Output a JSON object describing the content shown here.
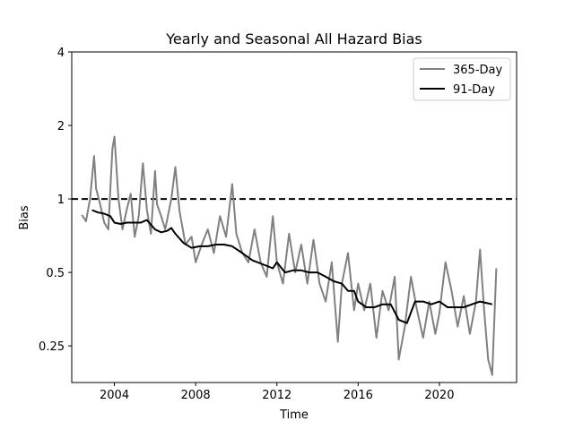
{
  "chart_data": {
    "type": "line",
    "title": "Yearly and Seasonal All Hazard Bias",
    "xlabel": "Time",
    "ylabel": "Bias",
    "y_scale": "log2",
    "xlim": [
      2001.9,
      2023.8
    ],
    "ylim": [
      0.177,
      4
    ],
    "x_ticks": [
      2004,
      2008,
      2012,
      2016,
      2020
    ],
    "x_tick_labels": [
      "2004",
      "2008",
      "2012",
      "2016",
      "2020"
    ],
    "y_ticks": [
      0.25,
      0.5,
      1,
      2,
      4
    ],
    "y_tick_labels": [
      "0.25",
      "0.5",
      "1",
      "2",
      "4"
    ],
    "grid": false,
    "legend": {
      "position": "top-right",
      "entries": [
        "365-Day",
        "91-Day"
      ]
    },
    "reference_line": {
      "y": 1,
      "style": "dashed",
      "color": "#000000"
    },
    "series": [
      {
        "name": "365-Day",
        "color": "#808080",
        "x": [
          2002.4,
          2002.6,
          2002.8,
          2003.0,
          2003.1,
          2003.3,
          2003.5,
          2003.7,
          2003.9,
          2004.0,
          2004.2,
          2004.4,
          2004.6,
          2004.8,
          2005.0,
          2005.2,
          2005.4,
          2005.6,
          2005.8,
          2006.0,
          2006.1,
          2006.3,
          2006.5,
          2006.8,
          2007.0,
          2007.2,
          2007.5,
          2007.8,
          2008.0,
          2008.3,
          2008.6,
          2008.9,
          2009.2,
          2009.5,
          2009.8,
          2010.0,
          2010.3,
          2010.6,
          2010.9,
          2011.2,
          2011.5,
          2011.8,
          2012.0,
          2012.3,
          2012.6,
          2012.9,
          2013.2,
          2013.5,
          2013.8,
          2014.1,
          2014.4,
          2014.7,
          2015.0,
          2015.2,
          2015.5,
          2015.8,
          2016.0,
          2016.3,
          2016.6,
          2016.9,
          2017.2,
          2017.5,
          2017.8,
          2018.0,
          2018.3,
          2018.6,
          2018.9,
          2019.2,
          2019.5,
          2019.8,
          2020.0,
          2020.3,
          2020.6,
          2020.9,
          2021.2,
          2021.5,
          2021.8,
          2022.0,
          2022.2,
          2022.4,
          2022.6,
          2022.8
        ],
        "values": [
          0.86,
          0.81,
          1.0,
          1.5,
          1.1,
          0.95,
          0.8,
          0.75,
          1.6,
          1.8,
          1.0,
          0.75,
          0.9,
          1.05,
          0.7,
          0.85,
          1.4,
          0.9,
          0.72,
          1.3,
          0.95,
          0.85,
          0.75,
          1.0,
          1.35,
          0.9,
          0.65,
          0.7,
          0.55,
          0.65,
          0.75,
          0.6,
          0.85,
          0.7,
          1.15,
          0.72,
          0.6,
          0.55,
          0.75,
          0.55,
          0.48,
          0.85,
          0.55,
          0.45,
          0.72,
          0.5,
          0.65,
          0.45,
          0.68,
          0.45,
          0.38,
          0.55,
          0.26,
          0.45,
          0.6,
          0.35,
          0.45,
          0.35,
          0.45,
          0.27,
          0.42,
          0.35,
          0.48,
          0.22,
          0.3,
          0.48,
          0.35,
          0.27,
          0.38,
          0.28,
          0.34,
          0.55,
          0.42,
          0.3,
          0.4,
          0.28,
          0.38,
          0.62,
          0.35,
          0.22,
          0.19,
          0.52
        ]
      },
      {
        "name": "91-Day",
        "color": "#000000",
        "x": [
          2002.9,
          2003.2,
          2003.5,
          2003.8,
          2004.0,
          2004.3,
          2004.6,
          2005.0,
          2005.3,
          2005.6,
          2006.0,
          2006.3,
          2006.6,
          2006.8,
          2007.0,
          2007.4,
          2007.8,
          2008.2,
          2008.6,
          2009.0,
          2009.4,
          2009.8,
          2010.3,
          2010.8,
          2011.3,
          2011.8,
          2012.0,
          2012.4,
          2012.8,
          2013.2,
          2013.6,
          2014.0,
          2014.4,
          2014.8,
          2015.2,
          2015.5,
          2015.8,
          2016.0,
          2016.4,
          2016.8,
          2017.2,
          2017.6,
          2018.0,
          2018.4,
          2018.8,
          2019.2,
          2019.6,
          2020.0,
          2020.4,
          2020.8,
          2021.2,
          2021.6,
          2022.0,
          2022.3,
          2022.6
        ],
        "values": [
          0.9,
          0.88,
          0.87,
          0.85,
          0.8,
          0.79,
          0.8,
          0.8,
          0.8,
          0.82,
          0.75,
          0.73,
          0.74,
          0.76,
          0.72,
          0.66,
          0.63,
          0.64,
          0.64,
          0.65,
          0.65,
          0.64,
          0.6,
          0.56,
          0.54,
          0.52,
          0.55,
          0.5,
          0.51,
          0.51,
          0.5,
          0.5,
          0.48,
          0.46,
          0.45,
          0.42,
          0.42,
          0.38,
          0.36,
          0.36,
          0.37,
          0.37,
          0.32,
          0.31,
          0.38,
          0.38,
          0.37,
          0.38,
          0.36,
          0.36,
          0.36,
          0.37,
          0.38,
          0.375,
          0.37
        ]
      }
    ]
  }
}
